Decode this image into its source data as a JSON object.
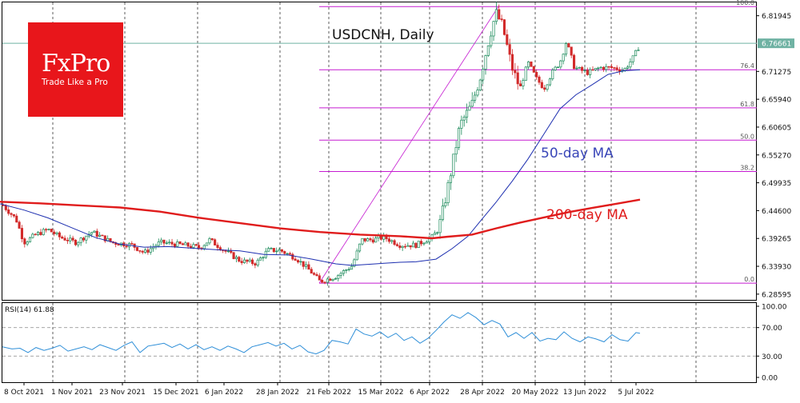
{
  "brand": {
    "name": "FxPro",
    "tagline": "Trade Like a Pro"
  },
  "chart_data": [
    {
      "type": "candlestick",
      "title": "USDCNH, Daily",
      "current_price": "6.76661",
      "y_ticks": [
        "6.81945",
        "6.76661",
        "6.71275",
        "6.65940",
        "6.60605",
        "6.55270",
        "6.49935",
        "6.44600",
        "6.39265",
        "6.33930",
        "6.28595"
      ],
      "ylim": [
        6.275,
        6.845
      ],
      "x_ticks": [
        "8 Oct 2021",
        "1 Nov 2021",
        "23 Nov 2021",
        "15 Dec 2021",
        "6 Jan 2022",
        "28 Jan 2022",
        "21 Feb 2022",
        "15 Mar 2022",
        "6 Apr 2022",
        "28 Apr 2022",
        "20 May 2022",
        "13 Jun 2022",
        "5 Jul 2022"
      ],
      "fibonacci": {
        "levels": [
          {
            "label": "100.0",
            "price": 6.837
          },
          {
            "label": "76.4",
            "price": 6.716
          },
          {
            "label": "61.8",
            "price": 6.643
          },
          {
            "label": "50.0",
            "price": 6.581
          },
          {
            "label": "38.2",
            "price": 6.521
          },
          {
            "label": "0.0",
            "price": 6.307
          }
        ]
      },
      "annotations": [
        "50-day MA",
        "200-day MA"
      ],
      "colors": {
        "up": "#1b8a5a",
        "down": "#d22a2a",
        "ma50": "#1d2fb0",
        "ma200": "#e01c1c",
        "fib": "#c51bd1",
        "current": "#6fb2a3",
        "grid": "#333333"
      },
      "series": [
        {
          "name": "MA50",
          "points": [
            [
              0,
              6.459
            ],
            [
              30,
              6.447
            ],
            [
              60,
              6.432
            ],
            [
              90,
              6.413
            ],
            [
              120,
              6.394
            ],
            [
              150,
              6.382
            ],
            [
              180,
              6.376
            ],
            [
              210,
              6.377
            ],
            [
              240,
              6.374
            ],
            [
              270,
              6.371
            ],
            [
              300,
              6.369
            ],
            [
              330,
              6.362
            ],
            [
              360,
              6.361
            ],
            [
              390,
              6.353
            ],
            [
              420,
              6.344
            ],
            [
              440,
              6.341
            ],
            [
              460,
              6.343
            ],
            [
              480,
              6.345
            ],
            [
              500,
              6.347
            ],
            [
              520,
              6.348
            ],
            [
              545,
              6.353
            ],
            [
              565,
              6.373
            ],
            [
              585,
              6.397
            ],
            [
              600,
              6.425
            ],
            [
              620,
              6.462
            ],
            [
              640,
              6.502
            ],
            [
              660,
              6.545
            ],
            [
              680,
              6.593
            ],
            [
              700,
              6.641
            ],
            [
              720,
              6.668
            ],
            [
              740,
              6.687
            ],
            [
              760,
              6.707
            ],
            [
              780,
              6.714
            ],
            [
              800,
              6.716
            ]
          ]
        },
        {
          "name": "MA200",
          "points": [
            [
              0,
              6.463
            ],
            [
              50,
              6.46
            ],
            [
              100,
              6.456
            ],
            [
              150,
              6.452
            ],
            [
              200,
              6.444
            ],
            [
              250,
              6.432
            ],
            [
              300,
              6.422
            ],
            [
              350,
              6.412
            ],
            [
              400,
              6.405
            ],
            [
              450,
              6.4
            ],
            [
              500,
              6.397
            ],
            [
              540,
              6.393
            ],
            [
              560,
              6.396
            ],
            [
              590,
              6.4
            ],
            [
              620,
              6.412
            ],
            [
              650,
              6.423
            ],
            [
              680,
              6.433
            ],
            [
              710,
              6.443
            ],
            [
              740,
              6.451
            ],
            [
              770,
              6.459
            ],
            [
              800,
              6.467
            ]
          ]
        }
      ]
    },
    {
      "type": "line",
      "title": "RSI(14) 61.88",
      "y_ticks": [
        "100.00",
        "70.00",
        "30.00",
        "0.00"
      ],
      "ylim": [
        0,
        100
      ],
      "levels": [
        70,
        30
      ],
      "series": [
        {
          "name": "RSI",
          "points": [
            [
              3,
              43
            ],
            [
              15,
              40
            ],
            [
              25,
              41
            ],
            [
              35,
              35
            ],
            [
              45,
              42
            ],
            [
              55,
              38
            ],
            [
              65,
              41
            ],
            [
              75,
              45
            ],
            [
              85,
              37
            ],
            [
              95,
              40
            ],
            [
              105,
              43
            ],
            [
              115,
              39
            ],
            [
              125,
              46
            ],
            [
              135,
              42
            ],
            [
              145,
              38
            ],
            [
              155,
              45
            ],
            [
              165,
              50
            ],
            [
              175,
              35
            ],
            [
              185,
              44
            ],
            [
              195,
              46
            ],
            [
              205,
              48
            ],
            [
              215,
              42
            ],
            [
              225,
              47
            ],
            [
              235,
              40
            ],
            [
              245,
              46
            ],
            [
              255,
              39
            ],
            [
              265,
              43
            ],
            [
              275,
              38
            ],
            [
              285,
              44
            ],
            [
              295,
              40
            ],
            [
              305,
              35
            ],
            [
              315,
              43
            ],
            [
              325,
              46
            ],
            [
              335,
              49
            ],
            [
              345,
              44
            ],
            [
              355,
              48
            ],
            [
              365,
              40
            ],
            [
              375,
              45
            ],
            [
              385,
              36
            ],
            [
              395,
              33
            ],
            [
              405,
              38
            ],
            [
              415,
              52
            ],
            [
              425,
              50
            ],
            [
              435,
              47
            ],
            [
              445,
              68
            ],
            [
              455,
              61
            ],
            [
              465,
              58
            ],
            [
              475,
              64
            ],
            [
              485,
              56
            ],
            [
              495,
              62
            ],
            [
              505,
              52
            ],
            [
              515,
              57
            ],
            [
              525,
              48
            ],
            [
              535,
              55
            ],
            [
              545,
              66
            ],
            [
              555,
              78
            ],
            [
              565,
              88
            ],
            [
              575,
              83
            ],
            [
              585,
              91
            ],
            [
              595,
              84
            ],
            [
              605,
              74
            ],
            [
              615,
              80
            ],
            [
              625,
              75
            ],
            [
              635,
              57
            ],
            [
              645,
              63
            ],
            [
              655,
              55
            ],
            [
              665,
              63
            ],
            [
              675,
              51
            ],
            [
              685,
              55
            ],
            [
              695,
              53
            ],
            [
              705,
              64
            ],
            [
              715,
              55
            ],
            [
              725,
              50
            ],
            [
              735,
              57
            ],
            [
              745,
              54
            ],
            [
              755,
              50
            ],
            [
              765,
              60
            ],
            [
              775,
              53
            ],
            [
              785,
              51
            ],
            [
              795,
              63
            ],
            [
              800,
              61.88
            ]
          ]
        }
      ]
    }
  ]
}
